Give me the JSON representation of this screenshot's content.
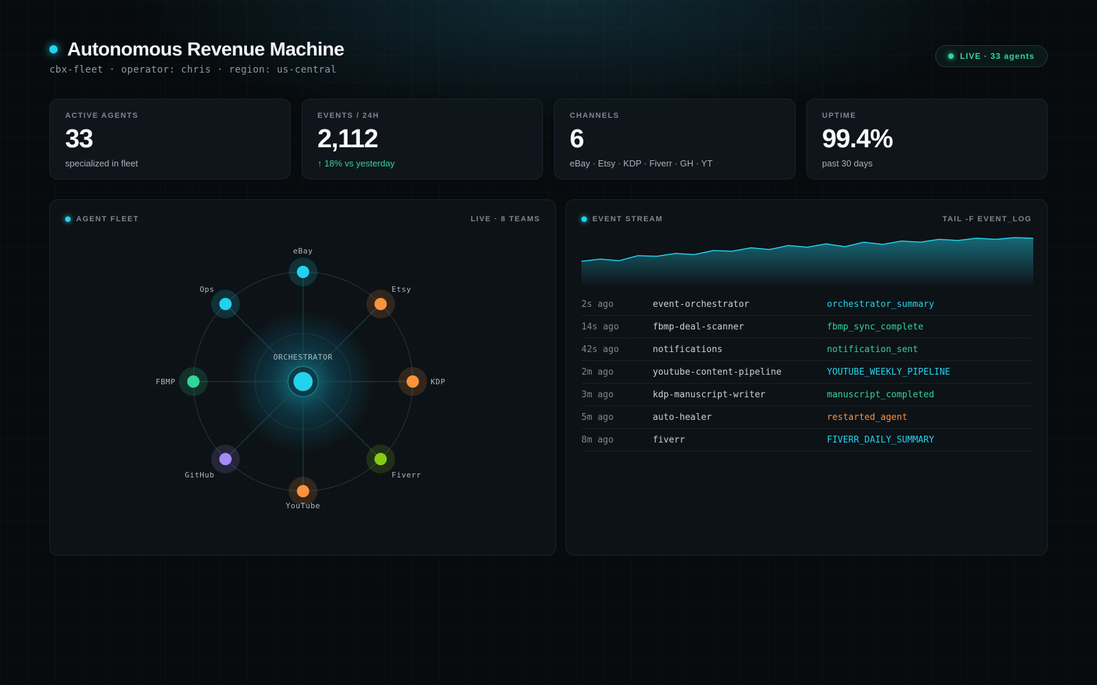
{
  "header": {
    "title": "Autonomous Revenue Machine",
    "subtitle": "cbx-fleet · operator: chris · region: us-central",
    "live_badge": "LIVE · 33 agents"
  },
  "stats": [
    {
      "label": "ACTIVE AGENTS",
      "value": "33",
      "sub": "specialized in fleet",
      "trend": "neutral"
    },
    {
      "label": "EVENTS / 24H",
      "value": "2,112",
      "sub": "↑ 18% vs yesterday",
      "trend": "up"
    },
    {
      "label": "CHANNELS",
      "value": "6",
      "sub": "eBay · Etsy · KDP · Fiverr · GH · YT",
      "trend": "neutral"
    },
    {
      "label": "UPTIME",
      "value": "99.4%",
      "sub": "past 30 days",
      "trend": "neutral"
    }
  ],
  "fleet": {
    "title": "AGENT FLEET",
    "status": "LIVE · 8 TEAMS",
    "center_label": "ORCHESTRATOR",
    "center_color": "#22d3ee",
    "nodes": [
      {
        "label": "eBay",
        "color": "#22d3ee"
      },
      {
        "label": "Etsy",
        "color": "#fb923c"
      },
      {
        "label": "KDP",
        "color": "#fb923c"
      },
      {
        "label": "Fiverr",
        "color": "#84cc16"
      },
      {
        "label": "YouTube",
        "color": "#fb923c"
      },
      {
        "label": "GitHub",
        "color": "#a78bfa"
      },
      {
        "label": "FBMP",
        "color": "#34d399"
      },
      {
        "label": "Ops",
        "color": "#22d3ee"
      }
    ]
  },
  "stream": {
    "title": "EVENT STREAM",
    "status": "TAIL -F EVENT_LOG",
    "sparkline": [
      42,
      46,
      43,
      52,
      51,
      56,
      54,
      61,
      60,
      66,
      63,
      70,
      67,
      73,
      68,
      76,
      72,
      78,
      76,
      81,
      79,
      83,
      81,
      84,
      83
    ],
    "events": [
      {
        "time": "2s ago",
        "agent": "event-orchestrator",
        "type": "orchestrator_summary",
        "color": "#22d3ee"
      },
      {
        "time": "14s ago",
        "agent": "fbmp-deal-scanner",
        "type": "fbmp_sync_complete",
        "color": "#34d399"
      },
      {
        "time": "42s ago",
        "agent": "notifications",
        "type": "notification_sent",
        "color": "#34d399"
      },
      {
        "time": "2m ago",
        "agent": "youtube-content-pipeline",
        "type": "YOUTUBE_WEEKLY_PIPELINE",
        "color": "#22d3ee"
      },
      {
        "time": "3m ago",
        "agent": "kdp-manuscript-writer",
        "type": "manuscript_completed",
        "color": "#34d399"
      },
      {
        "time": "5m ago",
        "agent": "auto-healer",
        "type": "restarted_agent",
        "color": "#fb923c"
      },
      {
        "time": "8m ago",
        "agent": "fiverr",
        "type": "FIVERR_DAILY_SUMMARY",
        "color": "#22d3ee"
      }
    ]
  }
}
